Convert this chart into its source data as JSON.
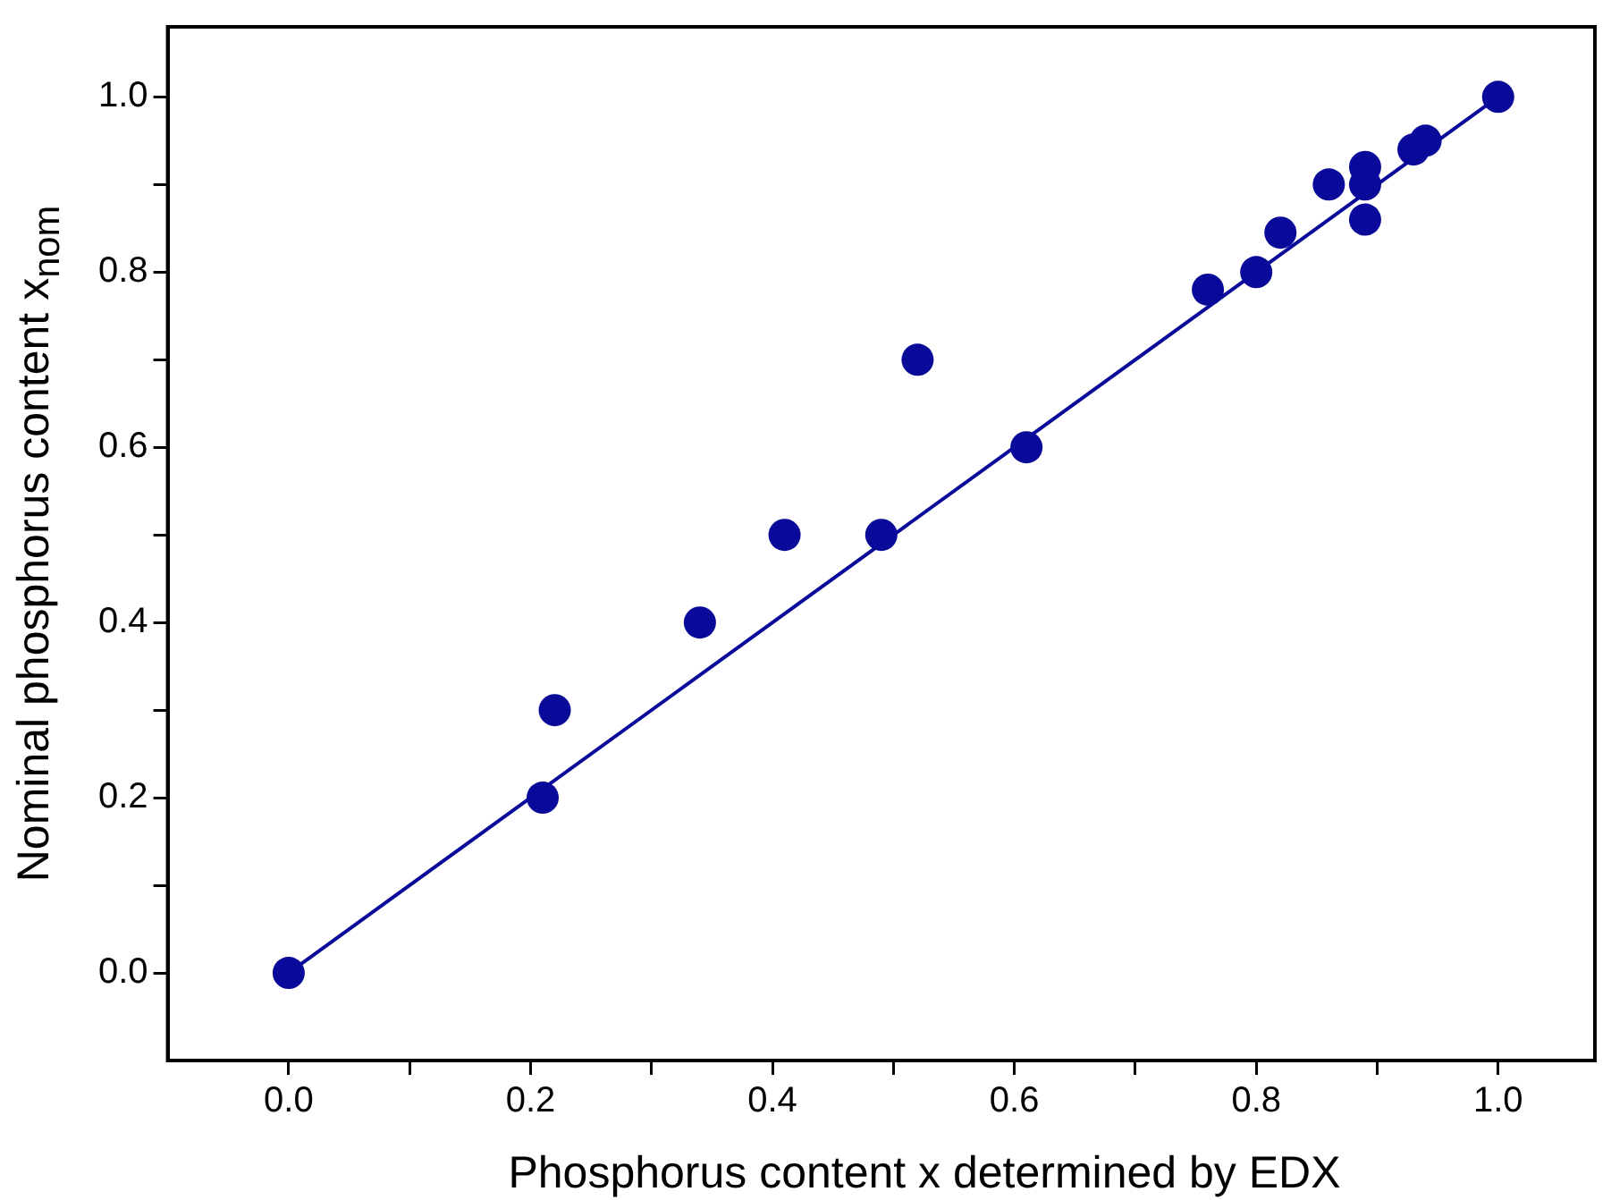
{
  "chart_data": {
    "type": "scatter",
    "xlabel": "Phosphorus content x determined by EDX",
    "ylabel": "Nominal phosphorus content x$_{nom}$",
    "xlim": [
      -0.1,
      1.08
    ],
    "ylim": [
      -0.1,
      1.08
    ],
    "xticks": [
      {
        "value": 0,
        "label": "0.0"
      },
      {
        "value": 0.1,
        "label": null
      },
      {
        "value": 0.2,
        "label": "0.2"
      },
      {
        "value": 0.3,
        "label": null
      },
      {
        "value": 0.4,
        "label": "0.4"
      },
      {
        "value": 0.5,
        "label": null
      },
      {
        "value": 0.6,
        "label": "0.6"
      },
      {
        "value": 0.7,
        "label": null
      },
      {
        "value": 0.8,
        "label": "0.8"
      },
      {
        "value": 0.9,
        "label": null
      },
      {
        "value": 1,
        "label": "1.0"
      }
    ],
    "yticks": [
      {
        "value": 0,
        "label": "0.0"
      },
      {
        "value": 0.1,
        "label": null
      },
      {
        "value": 0.2,
        "label": "0.2"
      },
      {
        "value": 0.3,
        "label": null
      },
      {
        "value": 0.4,
        "label": "0.4"
      },
      {
        "value": 0.5,
        "label": null
      },
      {
        "value": 0.6,
        "label": "0.6"
      },
      {
        "value": 0.7,
        "label": null
      },
      {
        "value": 0.8,
        "label": "0.8"
      },
      {
        "value": 0.9,
        "label": null
      },
      {
        "value": 1,
        "label": "1.0"
      }
    ],
    "grid": false,
    "legend": false,
    "marker": "circle",
    "series": [
      {
        "color": "#0a0a9a",
        "x": [
          0,
          0.21,
          0.22,
          0.34,
          0.41,
          0.49,
          0.52,
          0.61,
          0.76,
          0.8,
          0.82,
          0.86,
          0.89,
          0.89,
          0.89,
          0.93,
          0.94,
          1.0
        ],
        "values": [
          0,
          0.2,
          0.3,
          0.4,
          0.5,
          0.5,
          0.7,
          0.6,
          0.78,
          0.8,
          0.845,
          0.9,
          0.92,
          0.9,
          0.86,
          0.94,
          0.95,
          1.0
        ]
      },
      {
        "type": "line",
        "color": "#0a0a9a",
        "line_style": "solid",
        "marker": "none",
        "x": [
          0,
          1
        ],
        "values": [
          0,
          1
        ]
      }
    ]
  }
}
